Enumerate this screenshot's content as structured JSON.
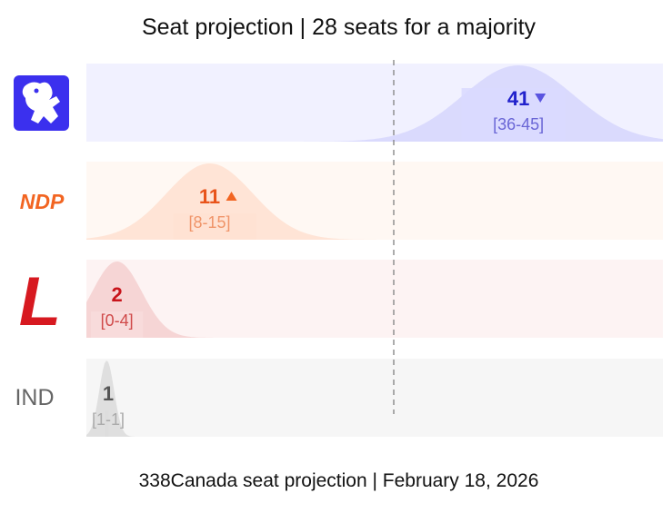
{
  "title": "Seat projection | 28 seats for a majority",
  "footer": "338Canada seat projection | February 18, 2026",
  "chart_data": {
    "type": "bar",
    "majority": 28,
    "x_range": [
      0,
      56
    ],
    "parties": [
      {
        "key": "conservative",
        "label": "",
        "logo": "lion-logo",
        "projection": 41,
        "range": [
          36,
          45
        ],
        "range_label": "[36-45]",
        "trend": "down",
        "color": "#3b30ee",
        "text_color": "#2222cc",
        "range_color": "#6a66d6",
        "bg": "#f1f1ff",
        "band": "#d9d9ff",
        "curve": "#c7c7fb"
      },
      {
        "key": "ndp",
        "label": "NDP",
        "logo": "ndp-logo",
        "projection": 11,
        "range": [
          8,
          15
        ],
        "range_label": "[8-15]",
        "trend": "up",
        "color": "#f26522",
        "text_color": "#e8541b",
        "range_color": "#f0956a",
        "bg": "#fff8f3",
        "band": "#ffe2d2",
        "curve": "#ffd4bd"
      },
      {
        "key": "liberal",
        "label": "L",
        "logo": "liberal-logo",
        "projection": 2,
        "range": [
          0,
          4
        ],
        "range_label": "[0-4]",
        "trend": "",
        "color": "#d71920",
        "text_color": "#c8141b",
        "range_color": "#d04a4a",
        "bg": "#fdf3f3",
        "band": "#f8dcdc",
        "curve": "#f0bcbc"
      },
      {
        "key": "independent",
        "label": "IND",
        "logo": "ind-label",
        "projection": 1,
        "range": [
          1,
          1
        ],
        "range_label": "[1-1]",
        "trend": "",
        "color": "#777777",
        "text_color": "#555555",
        "range_color": "#aaaaaa",
        "bg": "#f6f6f6",
        "band": "#dddddd",
        "curve": "#cccccc"
      }
    ]
  }
}
